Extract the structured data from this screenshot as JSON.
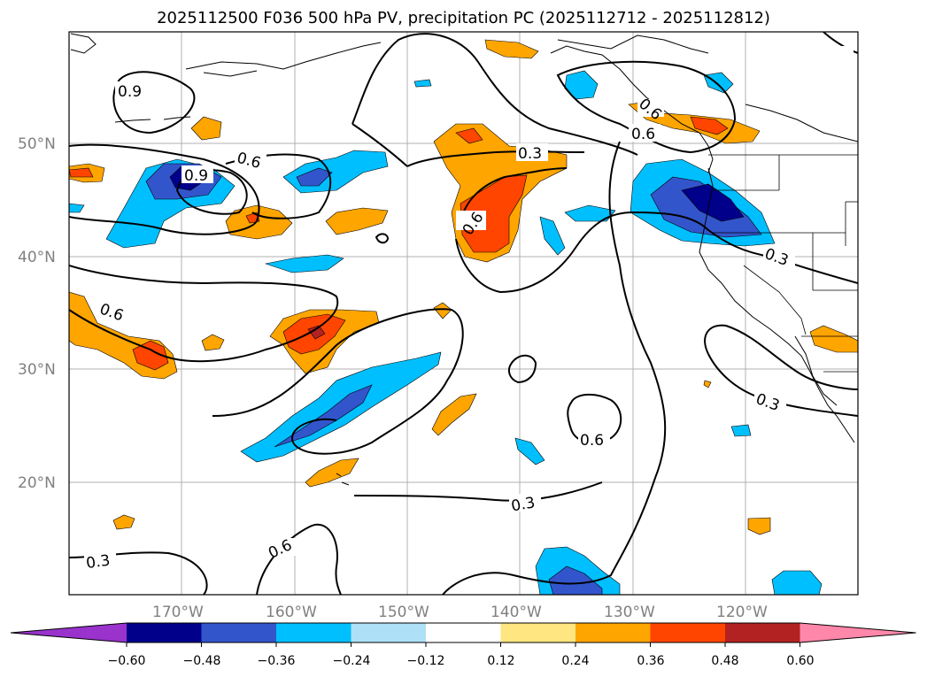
{
  "title": "2025112500 F036 500 hPa PV, precipitation PC (2025112712 - 2025112812)",
  "latitude_labels": [
    "50°N",
    "40°N",
    "30°N",
    "20°N"
  ],
  "longitude_labels": [
    "170°W",
    "160°W",
    "150°W",
    "140°W",
    "130°W",
    "120°W"
  ],
  "contour_labels": [
    "0.9",
    "0.9",
    "0.6",
    "0.6",
    "0.6",
    "0.6",
    "0.6",
    "0.6",
    "0.3",
    "0.3",
    "0.3",
    "0.3",
    "0.3",
    "0.6"
  ],
  "colorbar": {
    "ticks": [
      "−0.60",
      "−0.48",
      "−0.36",
      "−0.24",
      "−0.12",
      "0.12",
      "0.24",
      "0.36",
      "0.48",
      "0.60"
    ],
    "colors": [
      "#9933cc",
      "#00008b",
      "#3355cc",
      "#00bfff",
      "#aee0f8",
      "#ffffff",
      "#ffe680",
      "#ffa500",
      "#ff4500",
      "#b22222",
      "#ff88aa"
    ]
  }
}
